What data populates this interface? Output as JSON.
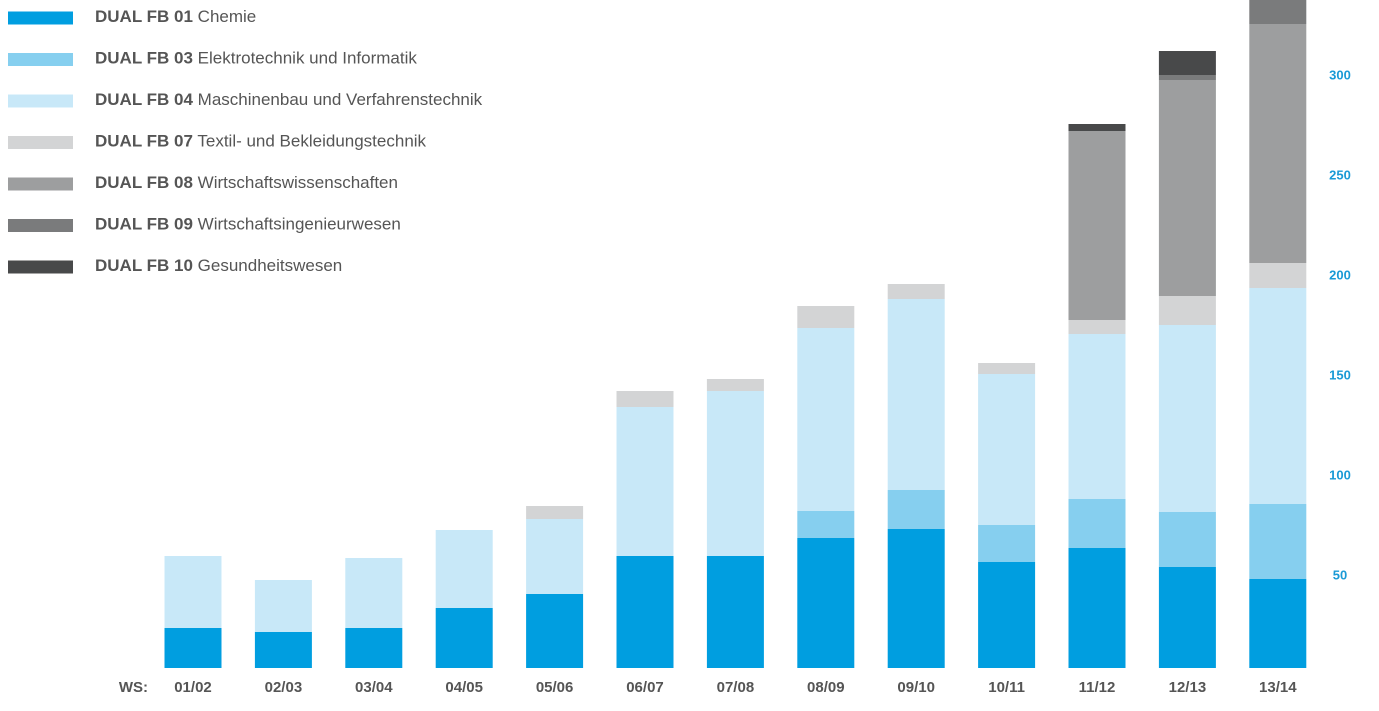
{
  "chart_data": {
    "type": "stacked_bar",
    "x_label": "WS:",
    "categories": [
      "01/02",
      "02/03",
      "03/04",
      "04/05",
      "05/06",
      "06/07",
      "07/08",
      "08/09",
      "09/10",
      "10/11",
      "11/12",
      "12/13",
      "13/14"
    ],
    "series": [
      {
        "code": "DUAL FB 01",
        "name": "Chemie",
        "color": "#009ee0",
        "values": [
          20,
          18,
          20,
          30,
          37,
          56,
          56,
          65,
          69.5,
          53,
          60,
          50.5,
          44.5
        ]
      },
      {
        "code": "DUAL FB 03",
        "name": "Elektrotechnik und Informatik",
        "color": "#86cfef",
        "values": [
          0,
          0,
          0,
          0,
          0,
          0,
          0,
          13.5,
          19.5,
          18.5,
          24.5,
          27.5,
          37.5
        ]
      },
      {
        "code": "DUAL FB 04",
        "name": "Maschinenbau und Verfahrenstechnik",
        "color": "#c8e8f8",
        "values": [
          36,
          26,
          35,
          39,
          37.5,
          74.5,
          82.5,
          91.5,
          95.5,
          75.5,
          82.5,
          93.5,
          108
        ]
      },
      {
        "code": "DUAL FB 07",
        "name": "Textil- und Bekleidungstechnik",
        "color": "#d3d4d5",
        "values": [
          0,
          0,
          0,
          0,
          6.5,
          8,
          6,
          11,
          7.5,
          5.5,
          7,
          14.5,
          12.5
        ]
      },
      {
        "code": "DUAL FB 08",
        "name": "Wirtschaftswissenschaften",
        "color": "#9d9e9f",
        "values": [
          0,
          0,
          0,
          0,
          0,
          0,
          0,
          0,
          0,
          0,
          94.5,
          108,
          119.5
        ]
      },
      {
        "code": "DUAL FB 09",
        "name": "Wirtschaftsingenieurwesen",
        "color": "#7a7b7c",
        "values": [
          0,
          0,
          0,
          0,
          0,
          0,
          0,
          0,
          0,
          0,
          0,
          2.5,
          12
        ]
      },
      {
        "code": "DUAL FB 10",
        "name": "Gesundheitswesen",
        "color": "#48494a",
        "values": [
          0,
          0,
          0,
          0,
          0,
          0,
          0,
          0,
          0,
          0,
          3.5,
          12,
          0
        ]
      }
    ],
    "ylim": [
      0,
      334
    ],
    "yticks": [
      50,
      100,
      150,
      200,
      250,
      300
    ],
    "grid": false
  }
}
